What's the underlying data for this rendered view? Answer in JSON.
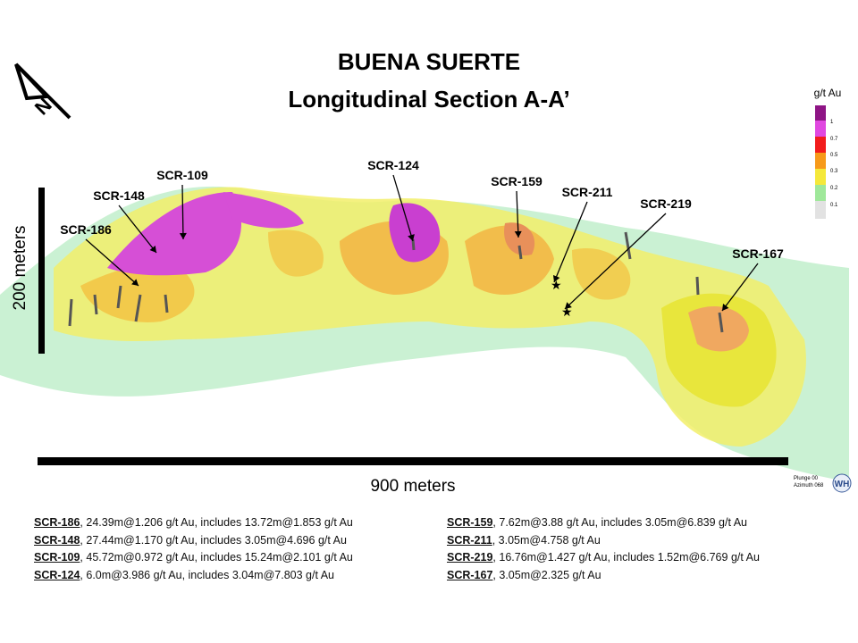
{
  "title": {
    "line1": "BUENA SUERTE",
    "line2": "Longitudinal Section A-A’"
  },
  "north": "N",
  "scale": {
    "vertical": "200 meters",
    "horizontal": "900 meters"
  },
  "legend": {
    "title": "g/t Au",
    "labels": [
      "1",
      "0.7",
      "0.5",
      "0.3",
      "0.2",
      "0.1"
    ]
  },
  "holes": [
    "SCR-186",
    "SCR-148",
    "SCR-109",
    "SCR-124",
    "SCR-159",
    "SCR-211",
    "SCR-219",
    "SCR-167"
  ],
  "view": {
    "plunge": "Plunge 00",
    "azimuth": "Azimuth 068"
  },
  "logo": "WH",
  "notes": {
    "left": [
      {
        "id": "SCR-186",
        "text": ", 24.39m@1.206 g/t Au, includes 13.72m@1.853 g/t Au"
      },
      {
        "id": "SCR-148",
        "text": ", 27.44m@1.170 g/t Au, includes 3.05m@4.696 g/t Au"
      },
      {
        "id": "SCR-109",
        "text": ", 45.72m@0.972 g/t Au, includes 15.24m@2.101 g/t Au"
      },
      {
        "id": "SCR-124",
        "text": ", 6.0m@3.986 g/t Au, includes 3.04m@7.803 g/t Au"
      }
    ],
    "right": [
      {
        "id": "SCR-159",
        "text": ", 7.62m@3.88 g/t Au, includes 3.05m@6.839 g/t Au"
      },
      {
        "id": "SCR-211",
        "text": ", 3.05m@4.758 g/t Au"
      },
      {
        "id": "SCR-219",
        "text": ", 16.76m@1.427 g/t Au, includes 1.52m@6.769 g/t Au"
      },
      {
        "id": "SCR-167",
        "text": ", 3.05m@2.325 g/t Au"
      }
    ]
  }
}
